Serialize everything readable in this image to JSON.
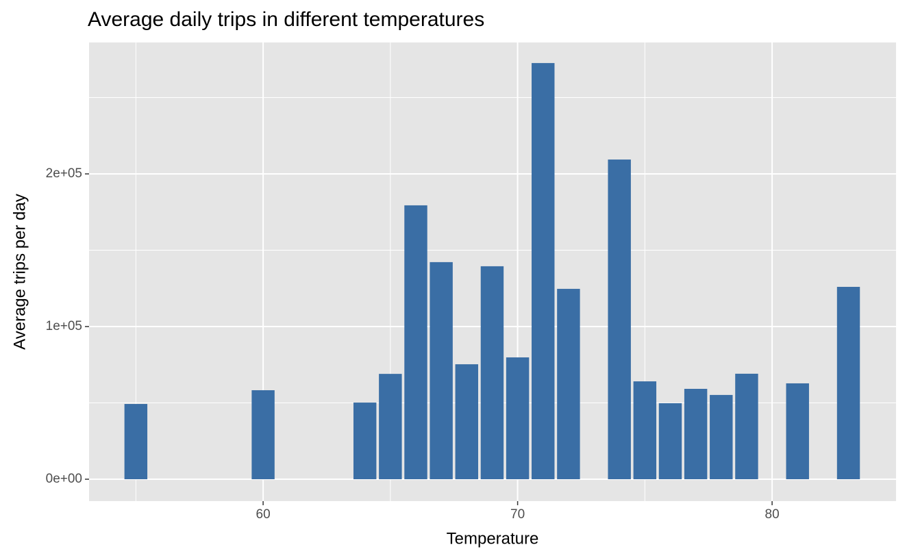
{
  "chart_data": {
    "type": "bar",
    "title": "Average daily trips in different temperatures",
    "x_label": "Temperature",
    "y_label": "Average trips per day",
    "x": [
      55,
      60,
      64,
      65,
      66,
      67,
      68,
      69,
      70,
      71,
      72,
      74,
      75,
      76,
      77,
      78,
      79,
      81,
      83
    ],
    "values": [
      49300,
      58300,
      50200,
      69000,
      179400,
      142200,
      75300,
      139500,
      79800,
      272600,
      124700,
      209400,
      64100,
      49800,
      59200,
      55200,
      69100,
      62800,
      126000
    ],
    "color": "#3a6ea5",
    "xlim": [
      53.16,
      84.87
    ],
    "ylim": [
      -14350,
      286100
    ],
    "xticks": [
      60,
      70,
      80
    ],
    "yticks": [
      {
        "value": 0,
        "label": "0e+00"
      },
      {
        "value": 100000,
        "label": "1e+05"
      },
      {
        "value": 200000,
        "label": "2e+05"
      }
    ],
    "x_minor_ticks": [
      55,
      65,
      75
    ],
    "y_minor_ticks": [
      50000,
      150000,
      250000
    ],
    "grid": true,
    "panel_color": "#e5e5e5"
  }
}
